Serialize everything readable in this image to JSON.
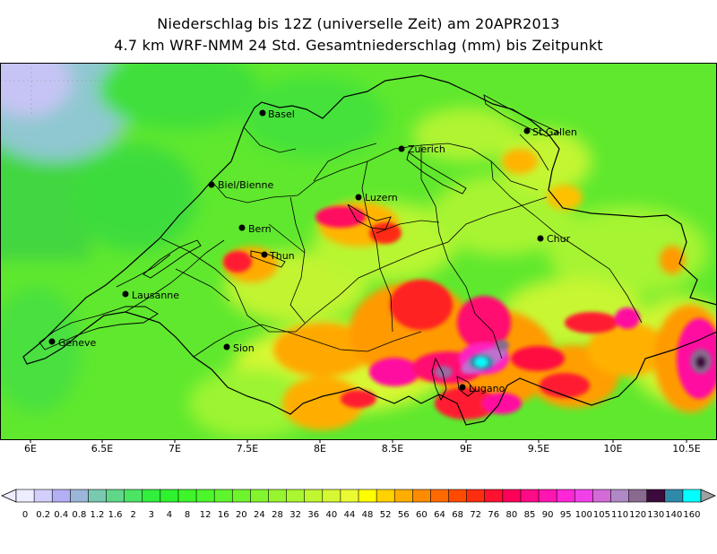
{
  "title": {
    "line1": "Niederschlag bis 12Z (universelle Zeit) am 20APR2013",
    "line2": "4.7 km WRF-NMM 24 Std. Gesamtniederschlag (mm) bis Zeitpunkt"
  },
  "map": {
    "lon_ticks": [
      "6E",
      "6.5E",
      "7E",
      "7.5E",
      "8E",
      "8.5E",
      "9E",
      "9.5E",
      "10E",
      "10.5E"
    ],
    "cities": [
      {
        "name": "Basel"
      },
      {
        "name": "Zuerich"
      },
      {
        "name": "St.Gallen"
      },
      {
        "name": "Biel/Bienne"
      },
      {
        "name": "Luzern"
      },
      {
        "name": "Bern"
      },
      {
        "name": "Chur"
      },
      {
        "name": "Thun"
      },
      {
        "name": "Lausanne"
      },
      {
        "name": "Geneve"
      },
      {
        "name": "Sion"
      },
      {
        "name": "Lugano"
      }
    ]
  },
  "colorbar": {
    "labels": [
      "0",
      "0.2",
      "0.4",
      "0.8",
      "1.2",
      "1.6",
      "2",
      "3",
      "4",
      "8",
      "12",
      "16",
      "20",
      "24",
      "28",
      "32",
      "36",
      "40",
      "44",
      "48",
      "52",
      "56",
      "60",
      "64",
      "68",
      "72",
      "76",
      "80",
      "85",
      "90",
      "95",
      "100",
      "105",
      "110",
      "120",
      "130",
      "140",
      "160"
    ],
    "colors": [
      "#ecedfe",
      "#d2d0fa",
      "#b4aef4",
      "#9bb6d8",
      "#78c9b0",
      "#5fd688",
      "#4be463",
      "#32ee3d",
      "#2ef22e",
      "#3ef42a",
      "#4cf62b",
      "#5ef52c",
      "#6ef42d",
      "#82f52e",
      "#96f52f",
      "#abf630",
      "#c0f731",
      "#d5f832",
      "#ebfb33",
      "#ffff00",
      "#ffd200",
      "#ffae00",
      "#ff8c00",
      "#ff6a00",
      "#ff4a00",
      "#ff2d10",
      "#ff1230",
      "#ff0058",
      "#ff0a87",
      "#ff16b0",
      "#ff26d8",
      "#f040e8",
      "#d36ad8",
      "#b088c4",
      "#8a6a8e",
      "#3c0a3c",
      "#2e8aa8",
      "#00ffff"
    ]
  }
}
